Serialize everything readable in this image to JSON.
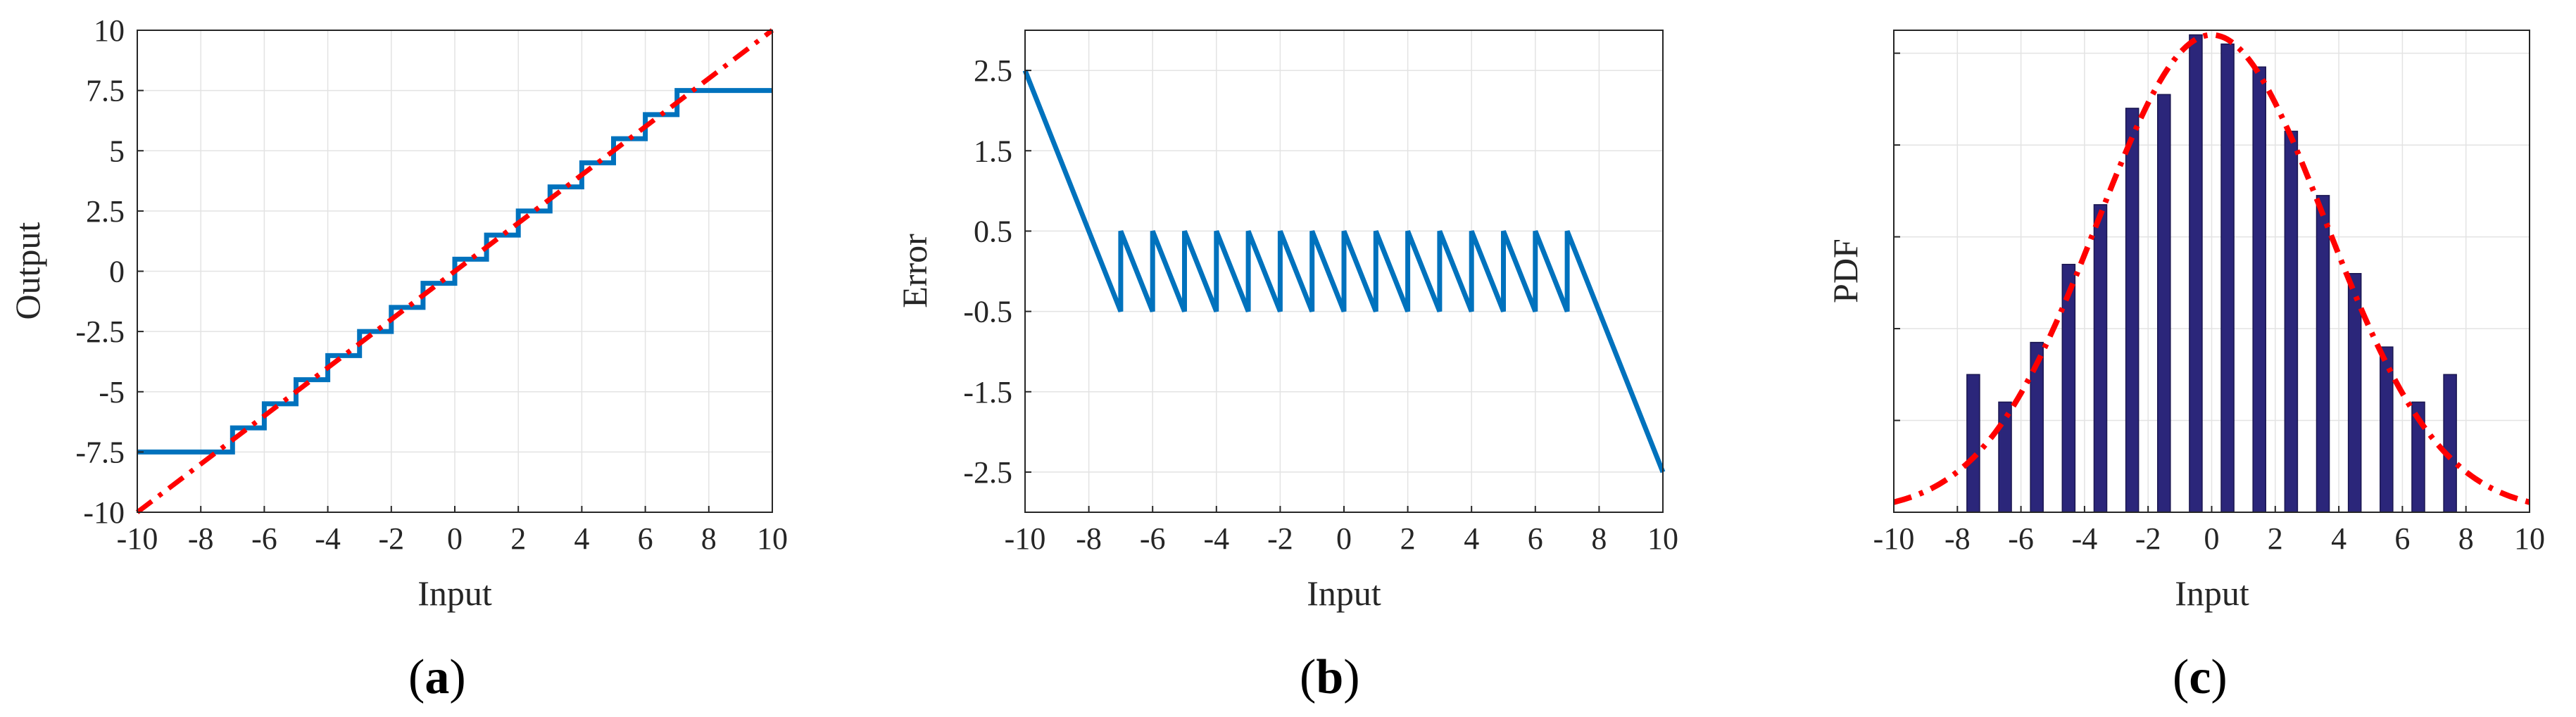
{
  "colors": {
    "quantizer": "#0072bd",
    "ideal_line": "#ff0000",
    "bars": "#2b267a",
    "gaussian": "#ff0000",
    "axes": "#262626",
    "grid": "#e3e3e3"
  },
  "panel_labels": [
    {
      "open": "(",
      "letter": "a",
      "close": ")"
    },
    {
      "open": "(",
      "letter": "b",
      "close": ")"
    },
    {
      "open": "(",
      "letter": "c",
      "close": ")"
    }
  ],
  "chart_data": [
    {
      "type": "line",
      "xlabel": "Input",
      "ylabel": "Output",
      "xlim": [
        -10,
        10
      ],
      "ylim": [
        -10,
        10
      ],
      "grid": true,
      "xticks": [
        -10,
        -8,
        -6,
        -4,
        -2,
        0,
        2,
        4,
        6,
        8,
        10
      ],
      "yticks": [
        -10,
        -7.5,
        -5,
        -2.5,
        0,
        2.5,
        5,
        7.5,
        10
      ],
      "xtick_labels": [
        "-10",
        "-8",
        "-6",
        "-4",
        "-2",
        "0",
        "2",
        "4",
        "6",
        "8",
        "10"
      ],
      "ytick_labels": [
        "-10",
        "-7.5",
        "-5",
        "-2.5",
        "0",
        "2.5",
        "5",
        "7.5",
        "10"
      ],
      "series": [
        {
          "style": "solid-staircase",
          "color": "#0072bd",
          "x": [
            -10,
            -7,
            -7,
            -6,
            -6,
            -5,
            -5,
            -4,
            -4,
            -3,
            -3,
            -2,
            -2,
            -1,
            -1,
            0,
            0,
            1,
            1,
            2,
            2,
            3,
            3,
            4,
            4,
            5,
            5,
            6,
            6,
            7,
            7,
            10
          ],
          "y": [
            -7.5,
            -7.5,
            -6.5,
            -6.5,
            -5.5,
            -5.5,
            -4.5,
            -4.5,
            -3.5,
            -3.5,
            -2.5,
            -2.5,
            -1.5,
            -1.5,
            -0.5,
            -0.5,
            0.5,
            0.5,
            1.5,
            1.5,
            2.5,
            2.5,
            3.5,
            3.5,
            4.5,
            4.5,
            5.5,
            5.5,
            6.5,
            6.5,
            7.5,
            7.5
          ]
        },
        {
          "style": "dash-dot",
          "color": "#ff0000",
          "x": [
            -10,
            10
          ],
          "y": [
            -10,
            10
          ]
        }
      ]
    },
    {
      "type": "line",
      "xlabel": "Input",
      "ylabel": "Error",
      "xlim": [
        -10,
        10
      ],
      "ylim": [
        -3,
        3
      ],
      "grid": true,
      "xticks": [
        -10,
        -8,
        -6,
        -4,
        -2,
        0,
        2,
        4,
        6,
        8,
        10
      ],
      "yticks": [
        -2.5,
        -1.5,
        -0.5,
        0.5,
        1.5,
        2.5
      ],
      "xtick_labels": [
        "-10",
        "-8",
        "-6",
        "-4",
        "-2",
        "0",
        "2",
        "4",
        "6",
        "8",
        "10"
      ],
      "ytick_labels": [
        "-2.5",
        "-1.5",
        "-0.5",
        "0.5",
        "1.5",
        "2.5"
      ],
      "series": [
        {
          "style": "solid",
          "color": "#0072bd",
          "x": [
            -10,
            -7,
            -7,
            -6,
            -6,
            -5,
            -5,
            -4,
            -4,
            -3,
            -3,
            -2,
            -2,
            -1,
            -1,
            0,
            0,
            1,
            1,
            2,
            2,
            3,
            3,
            4,
            4,
            5,
            5,
            6,
            6,
            7,
            7,
            10
          ],
          "y": [
            2.5,
            -0.5,
            0.5,
            -0.5,
            0.5,
            -0.5,
            0.5,
            -0.5,
            0.5,
            -0.5,
            0.5,
            -0.5,
            0.5,
            -0.5,
            0.5,
            -0.5,
            0.5,
            -0.5,
            0.5,
            -0.5,
            0.5,
            -0.5,
            0.5,
            -0.5,
            0.5,
            -0.5,
            0.5,
            -0.5,
            0.5,
            -0.5,
            0.5,
            -2.5
          ]
        }
      ]
    },
    {
      "type": "bar",
      "xlabel": "Input",
      "ylabel": "PDF",
      "xlim": [
        -10,
        10
      ],
      "ylim": [
        0,
        1.05
      ],
      "grid": true,
      "xticks": [
        -10,
        -8,
        -6,
        -4,
        -2,
        0,
        2,
        4,
        6,
        8,
        10
      ],
      "xtick_labels": [
        "-10",
        "-8",
        "-6",
        "-4",
        "-2",
        "0",
        "2",
        "4",
        "6",
        "8",
        "10"
      ],
      "y_grid": [
        0.2,
        0.4,
        0.6,
        0.8,
        1.0
      ],
      "bar_width": 0.4,
      "bar_color": "#2b267a",
      "x": [
        -7.5,
        -6.5,
        -5.5,
        -4.5,
        -3.5,
        -2.5,
        -1.5,
        -0.5,
        0.5,
        1.5,
        2.5,
        3.5,
        4.5,
        5.5,
        6.5,
        7.5
      ],
      "values": [
        0.3,
        0.24,
        0.37,
        0.54,
        0.67,
        0.88,
        0.91,
        1.04,
        1.02,
        0.97,
        0.83,
        0.69,
        0.52,
        0.36,
        0.24,
        0.3
      ],
      "curve": {
        "style": "dash-dot",
        "color": "#ff0000",
        "mean": 0,
        "sigma": 3.6,
        "peak": 1.04
      }
    }
  ]
}
